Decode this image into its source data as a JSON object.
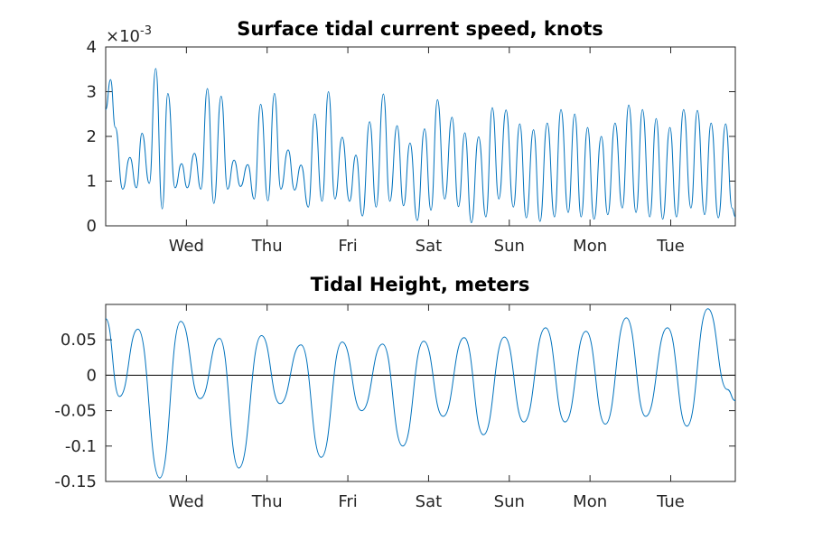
{
  "chart_data": [
    {
      "type": "line",
      "title": "Surface tidal current speed, knots",
      "exponent_label": "×10",
      "exponent_power": "-3",
      "xlabel": "",
      "ylabel": "",
      "xlim": [
        0,
        7.8
      ],
      "ylim": [
        0,
        4
      ],
      "y_ticks": [
        0,
        1,
        2,
        3,
        4
      ],
      "y_tick_labels": [
        "0",
        "1",
        "2",
        "3",
        "4"
      ],
      "x_ticks": [
        1,
        2,
        3,
        4,
        5,
        6,
        7
      ],
      "x_tick_labels": [
        "Wed",
        "Thu",
        "Fri",
        "Sat",
        "Sun",
        "Mon",
        "Tue"
      ],
      "grid": false,
      "color": "#0072bd",
      "series": [
        {
          "x": [
            0,
            0.06,
            0.12,
            0.21,
            0.3,
            0.38,
            0.45,
            0.54,
            0.62,
            0.7,
            0.77,
            0.86,
            0.94,
            1.01,
            1.1,
            1.18,
            1.26,
            1.34,
            1.43,
            1.51,
            1.59,
            1.67,
            1.76,
            1.84,
            1.92,
            2.01,
            2.09,
            2.17,
            2.26,
            2.34,
            2.42,
            2.51,
            2.59,
            2.68,
            2.76,
            2.84,
            2.93,
            3.02,
            3.1,
            3.18,
            3.27,
            3.35,
            3.44,
            3.52,
            3.61,
            3.69,
            3.77,
            3.86,
            3.95,
            4.03,
            4.11,
            4.2,
            4.29,
            4.37,
            4.45,
            4.53,
            4.62,
            4.71,
            4.79,
            4.87,
            4.96,
            5.05,
            5.13,
            5.21,
            5.3,
            5.38,
            5.47,
            5.56,
            5.64,
            5.73,
            5.81,
            5.89,
            5.97,
            6.05,
            6.14,
            6.22,
            6.31,
            6.4,
            6.48,
            6.57,
            6.65,
            6.74,
            6.82,
            6.9,
            6.99,
            7.07,
            7.16,
            7.25,
            7.33,
            7.42,
            7.5,
            7.59,
            7.68,
            7.76,
            7.8
          ],
          "y": [
            2.6,
            3.27,
            2.2,
            0.82,
            1.53,
            0.85,
            2.07,
            0.95,
            3.52,
            0.38,
            2.96,
            0.85,
            1.39,
            0.85,
            1.62,
            0.82,
            3.07,
            0.5,
            2.9,
            0.82,
            1.47,
            0.88,
            1.37,
            0.6,
            2.72,
            0.56,
            2.96,
            0.82,
            1.7,
            0.8,
            1.36,
            0.42,
            2.5,
            0.55,
            3.0,
            0.6,
            1.98,
            0.55,
            1.58,
            0.22,
            2.33,
            0.42,
            2.95,
            0.55,
            2.24,
            0.45,
            1.85,
            0.12,
            2.17,
            0.35,
            2.82,
            0.6,
            2.43,
            0.43,
            2.08,
            0.07,
            1.99,
            0.2,
            2.64,
            0.6,
            2.59,
            0.42,
            2.28,
            0.18,
            2.15,
            0.1,
            2.3,
            0.2,
            2.6,
            0.3,
            2.5,
            0.2,
            2.2,
            0.15,
            2.0,
            0.25,
            2.3,
            0.4,
            2.7,
            0.3,
            2.6,
            0.2,
            2.4,
            0.15,
            2.2,
            0.2,
            2.6,
            0.4,
            2.58,
            0.25,
            2.3,
            0.18,
            2.28,
            0.4,
            0.2
          ]
        }
      ]
    },
    {
      "type": "line",
      "title": "Tidal Height, meters",
      "xlabel": "",
      "ylabel": "",
      "xlim": [
        0,
        7.8
      ],
      "ylim": [
        -0.15,
        0.1
      ],
      "y_ticks": [
        -0.15,
        -0.1,
        -0.05,
        0,
        0.05
      ],
      "y_tick_labels": [
        "-0.15",
        "-0.1",
        "-0.05",
        "0",
        "0.05"
      ],
      "x_ticks": [
        1,
        2,
        3,
        4,
        5,
        6,
        7
      ],
      "x_tick_labels": [
        "Wed",
        "Thu",
        "Fri",
        "Sat",
        "Sun",
        "Mon",
        "Tue"
      ],
      "grid": false,
      "zero_line": true,
      "color": "#0072bd",
      "series": [
        {
          "x": [
            0,
            0.17,
            0.4,
            0.67,
            0.93,
            1.17,
            1.41,
            1.65,
            1.93,
            2.16,
            2.42,
            2.67,
            2.93,
            3.17,
            3.43,
            3.68,
            3.94,
            4.18,
            4.44,
            4.68,
            4.94,
            5.18,
            5.45,
            5.69,
            5.95,
            6.19,
            6.45,
            6.69,
            6.96,
            7.2,
            7.46,
            7.7,
            7.8
          ],
          "y": [
            0.08,
            -0.03,
            0.065,
            -0.145,
            0.076,
            -0.033,
            0.052,
            -0.131,
            0.056,
            -0.04,
            0.043,
            -0.116,
            0.047,
            -0.05,
            0.044,
            -0.1,
            0.048,
            -0.058,
            0.053,
            -0.084,
            0.054,
            -0.066,
            0.067,
            -0.066,
            0.062,
            -0.069,
            0.081,
            -0.058,
            0.067,
            -0.072,
            0.094,
            -0.02,
            -0.036
          ]
        }
      ]
    }
  ]
}
